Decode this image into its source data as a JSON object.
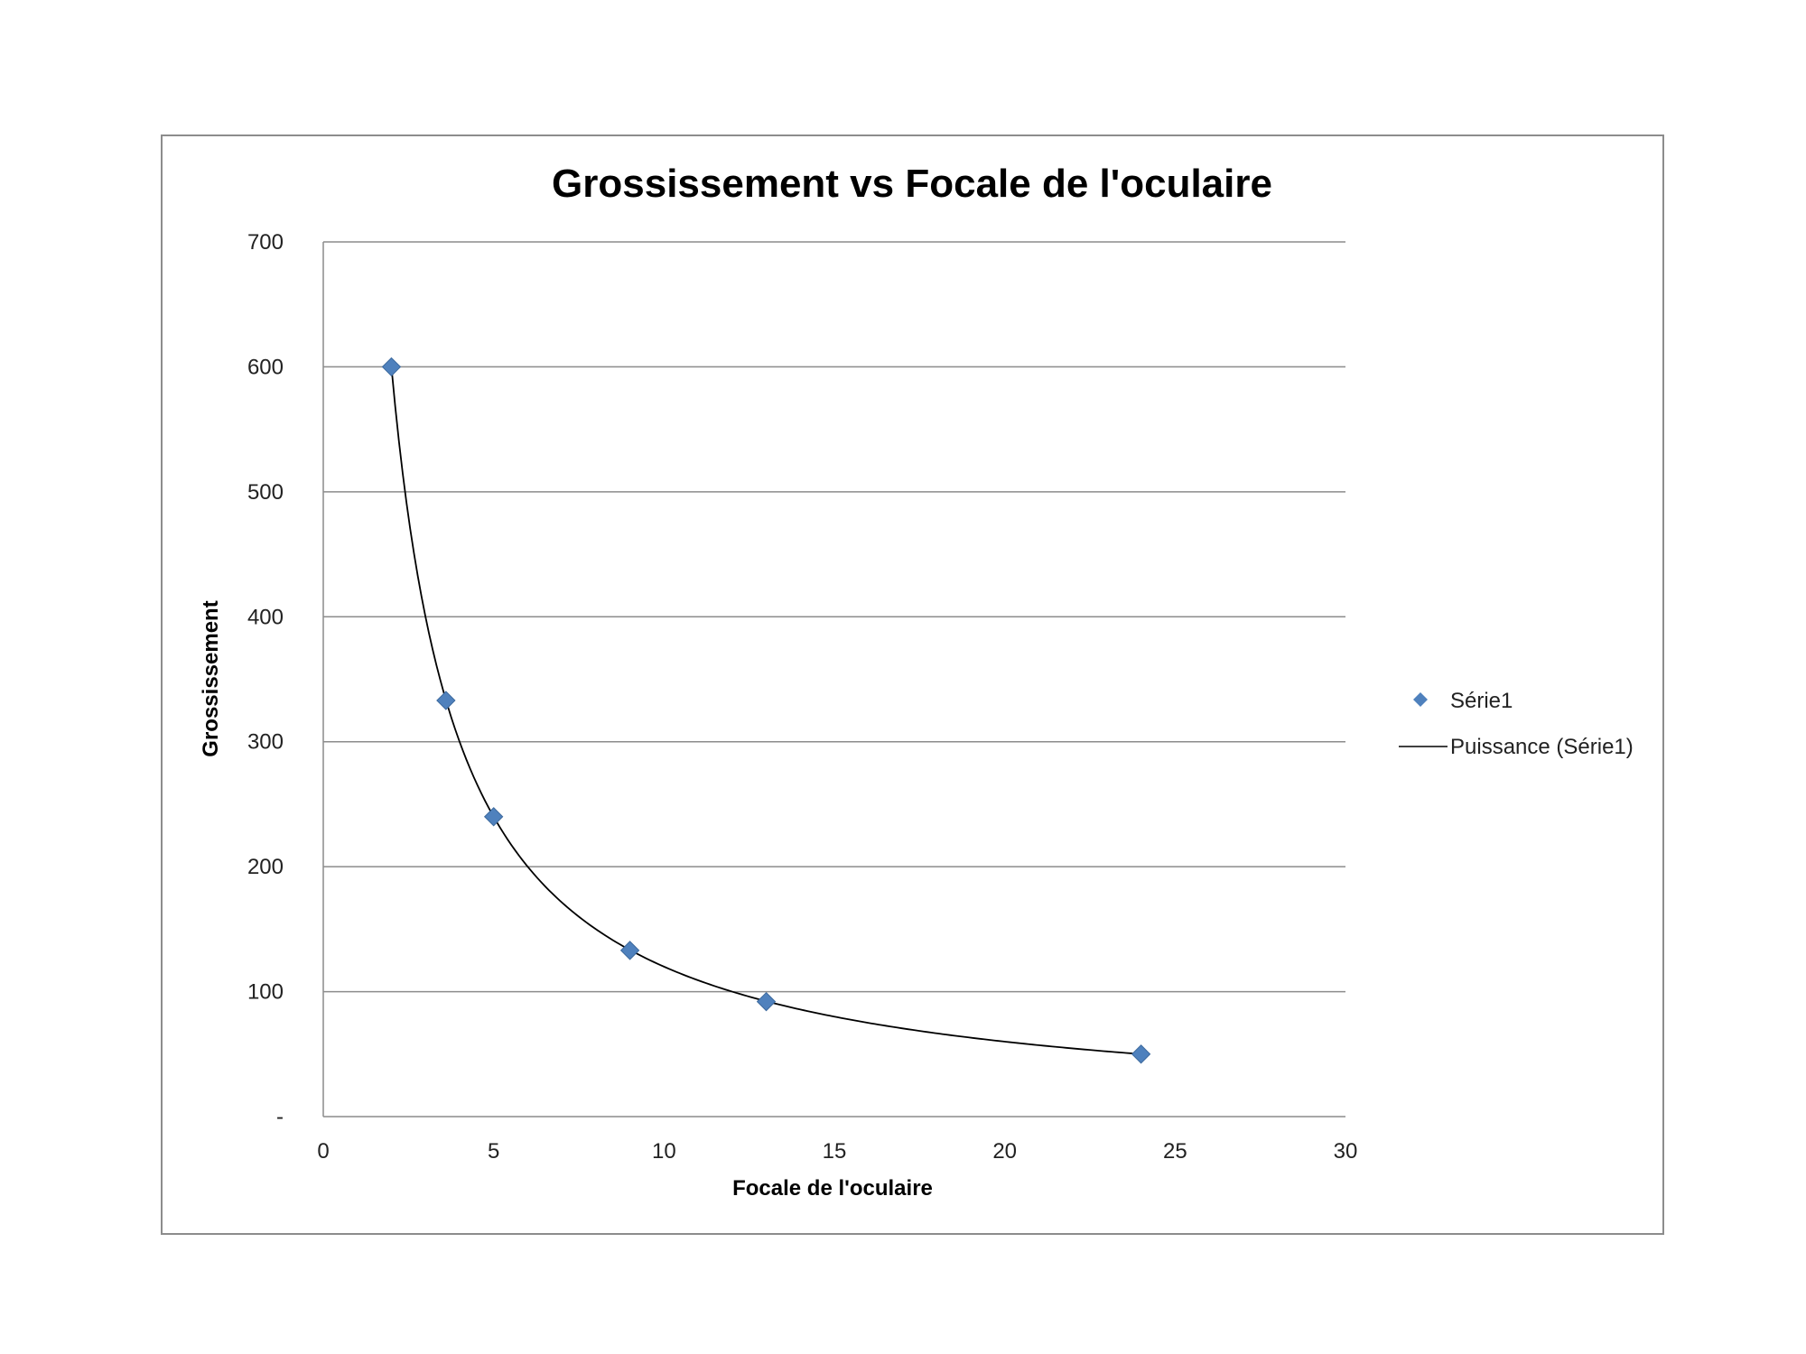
{
  "chart_data": {
    "type": "scatter",
    "title": "Grossissement vs Focale de l'oculaire",
    "xlabel": "Focale de l'oculaire",
    "ylabel": "Grossissement",
    "xlim": [
      0,
      30
    ],
    "ylim": [
      0,
      700
    ],
    "x_ticks": [
      "0",
      "5",
      "10",
      "15",
      "20",
      "25",
      "30"
    ],
    "y_ticks": [
      "-",
      "100",
      "200",
      "300",
      "400",
      "500",
      "600",
      "700"
    ],
    "grid": "horizontal",
    "legend_position": "right",
    "series": [
      {
        "name": "Série1",
        "marker": "diamond",
        "color": "#4f81bd",
        "x": [
          2,
          3.6,
          5,
          9,
          13,
          24
        ],
        "y": [
          600,
          333,
          240,
          133,
          92,
          50
        ]
      }
    ],
    "trendline": {
      "name": "Puissance (Série1)",
      "type": "power",
      "color": "#000000",
      "coefficient": 1200,
      "exponent": -1,
      "x_range": [
        2,
        24
      ]
    }
  }
}
